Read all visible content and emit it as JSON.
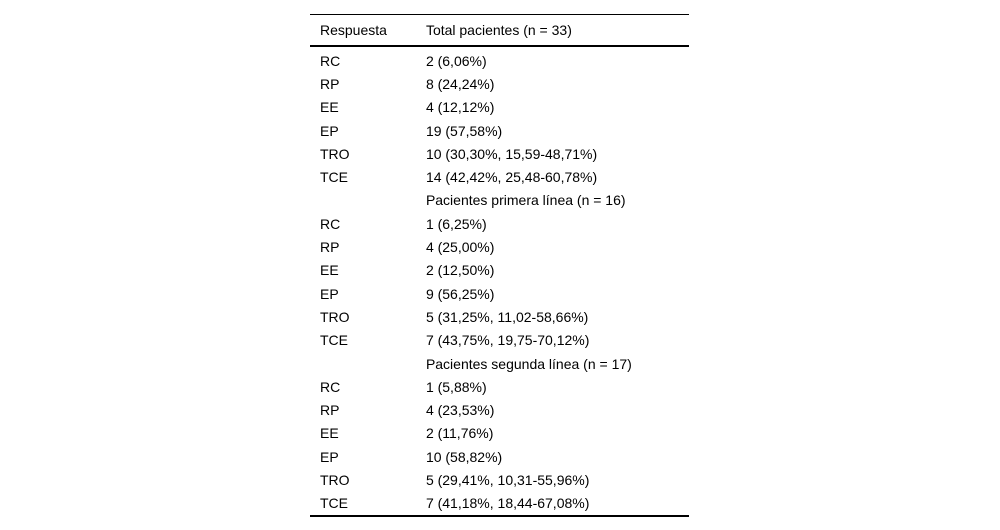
{
  "table": {
    "header": {
      "col1": "Respuesta",
      "col2": "Total pacientes (n = 33)"
    },
    "rows": [
      {
        "respuesta": "RC",
        "valor": "2 (6,06%)"
      },
      {
        "respuesta": "RP",
        "valor": "8 (24,24%)"
      },
      {
        "respuesta": "EE",
        "valor": "4 (12,12%)"
      },
      {
        "respuesta": "EP",
        "valor": "19 (57,58%)"
      },
      {
        "respuesta": "TRO",
        "valor": "10 (30,30%, 15,59-48,71%)"
      },
      {
        "respuesta": "TCE",
        "valor": "14 (42,42%, 25,48-60,78%)"
      },
      {
        "respuesta": "",
        "valor": "Pacientes primera línea (n = 16)"
      },
      {
        "respuesta": "RC",
        "valor": "1 (6,25%)"
      },
      {
        "respuesta": "RP",
        "valor": "4 (25,00%)"
      },
      {
        "respuesta": "EE",
        "valor": "2 (12,50%)"
      },
      {
        "respuesta": "EP",
        "valor": "9 (56,25%)"
      },
      {
        "respuesta": "TRO",
        "valor": "5 (31,25%, 11,02-58,66%)"
      },
      {
        "respuesta": "TCE",
        "valor": "7 (43,75%, 19,75-70,12%)"
      },
      {
        "respuesta": "",
        "valor": "Pacientes segunda línea (n = 17)"
      },
      {
        "respuesta": "RC",
        "valor": "1 (5,88%)"
      },
      {
        "respuesta": "RP",
        "valor": "4 (23,53%)"
      },
      {
        "respuesta": "EE",
        "valor": "2 (11,76%)"
      },
      {
        "respuesta": "EP",
        "valor": "10 (58,82%)"
      },
      {
        "respuesta": "TRO",
        "valor": "5 (29,41%, 10,31-55,96%)"
      },
      {
        "respuesta": "TCE",
        "valor": "7 (41,18%, 18,44-67,08%)"
      }
    ],
    "colors": {
      "text": "#000000",
      "rule": "#000000",
      "background": "#ffffff"
    }
  }
}
